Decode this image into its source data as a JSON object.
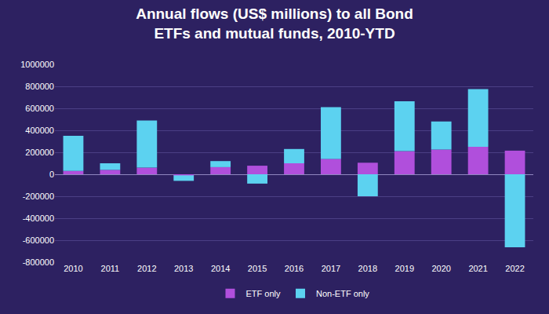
{
  "chart_data": {
    "type": "bar",
    "title": [
      "Annual flows (US$ millions) to all Bond",
      "ETFs and mutual funds, 2010-YTD"
    ],
    "categories": [
      "2010",
      "2011",
      "2012",
      "2013",
      "2014",
      "2015",
      "2016",
      "2017",
      "2018",
      "2019",
      "2020",
      "2021",
      "2022"
    ],
    "series": [
      {
        "name": "ETF only",
        "color": "#b04fdc",
        "values": [
          30000,
          40000,
          60000,
          -10000,
          65000,
          78000,
          100000,
          140000,
          105000,
          210000,
          225000,
          250000,
          215000
        ]
      },
      {
        "name": "Non-ETF only",
        "color": "#5cd2f0",
        "values": [
          320000,
          60000,
          430000,
          -50000,
          55000,
          -85000,
          130000,
          470000,
          -200000,
          455000,
          255000,
          525000,
          -665000
        ]
      }
    ],
    "stacked": true,
    "ylim": [
      -800000,
      1000000
    ],
    "yticks": [
      -800000,
      -600000,
      -400000,
      -200000,
      0,
      200000,
      400000,
      600000,
      800000,
      1000000
    ],
    "grid": true,
    "legend": "bottom"
  }
}
